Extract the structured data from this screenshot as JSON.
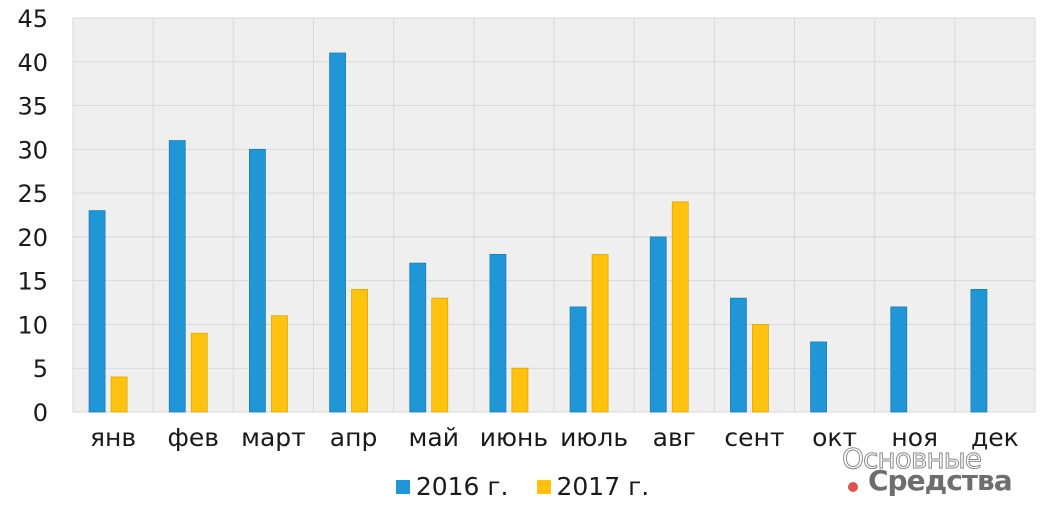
{
  "chart_data": {
    "type": "bar",
    "categories": [
      "янв",
      "фев",
      "март",
      "апр",
      "май",
      "июнь",
      "июль",
      "авг",
      "сент",
      "окт",
      "ноя",
      "дек"
    ],
    "series": [
      {
        "name": "2016 г.",
        "color": "#2196d6",
        "values": [
          23,
          31,
          30,
          41,
          17,
          18,
          12,
          20,
          13,
          8,
          12,
          14
        ]
      },
      {
        "name": "2017 г.",
        "color": "#ffc20e",
        "values": [
          4,
          9,
          11,
          14,
          13,
          5,
          18,
          24,
          10,
          null,
          null,
          null
        ]
      }
    ],
    "ylim": [
      0,
      45
    ],
    "yticks": [
      0,
      5,
      10,
      15,
      20,
      25,
      30,
      35,
      40,
      45
    ],
    "grid": true,
    "legend_position": "bottom",
    "plot_background": "#efefef"
  },
  "watermark": {
    "line1": "Основные",
    "line2": "Средства"
  }
}
